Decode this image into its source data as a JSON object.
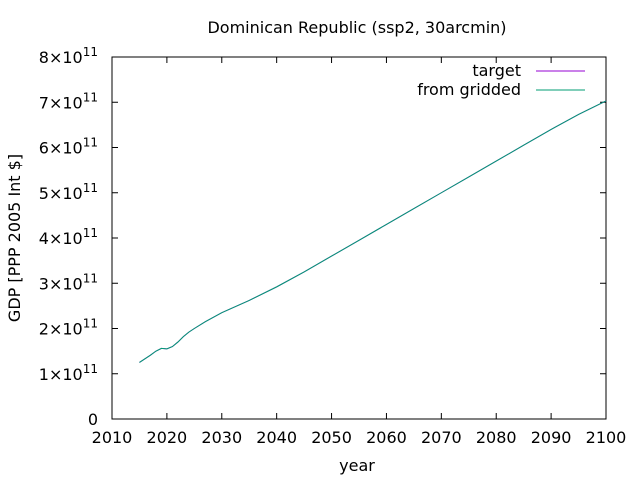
{
  "chart_data": {
    "type": "line",
    "title": "Dominican Republic (ssp2, 30arcmin)",
    "xlabel": "year",
    "ylabel": "GDP [PPP 2005 Int $]",
    "xlim": [
      2010,
      2100
    ],
    "ylim": [
      0,
      800000000000
    ],
    "x_ticks": [
      2010,
      2020,
      2030,
      2040,
      2050,
      2060,
      2070,
      2080,
      2090,
      2100
    ],
    "x_tick_labels": [
      "2010",
      "2020",
      "2030",
      "2040",
      "2050",
      "2060",
      "2070",
      "2080",
      "2090",
      "2100"
    ],
    "y_ticks": [
      0,
      100000000000,
      200000000000,
      300000000000,
      400000000000,
      500000000000,
      600000000000,
      700000000000,
      800000000000
    ],
    "y_tick_labels": [
      {
        "mantissa": "0",
        "exponent": ""
      },
      {
        "mantissa": "1×10",
        "exponent": "11"
      },
      {
        "mantissa": "2×10",
        "exponent": "11"
      },
      {
        "mantissa": "3×10",
        "exponent": "11"
      },
      {
        "mantissa": "4×10",
        "exponent": "11"
      },
      {
        "mantissa": "5×10",
        "exponent": "11"
      },
      {
        "mantissa": "6×10",
        "exponent": "11"
      },
      {
        "mantissa": "7×10",
        "exponent": "11"
      },
      {
        "mantissa": "8×10",
        "exponent": "11"
      }
    ],
    "grid": false,
    "legend_position": "top-right",
    "series": [
      {
        "name": "target",
        "color": "#9400d3",
        "x": [
          2015,
          2016,
          2017,
          2018,
          2019,
          2020,
          2021,
          2022,
          2023,
          2024,
          2025,
          2027,
          2030,
          2035,
          2040,
          2045,
          2050,
          2055,
          2060,
          2065,
          2070,
          2075,
          2080,
          2085,
          2090,
          2095,
          2100
        ],
        "y": [
          125000000000,
          133000000000,
          141000000000,
          150000000000,
          156000000000,
          155000000000,
          160000000000,
          170000000000,
          182000000000,
          192000000000,
          200000000000,
          215000000000,
          235000000000,
          262000000000,
          292000000000,
          325000000000,
          360000000000,
          395000000000,
          430000000000,
          465000000000,
          500000000000,
          535000000000,
          570000000000,
          605000000000,
          640000000000,
          673000000000,
          703000000000
        ]
      },
      {
        "name": "from gridded",
        "color": "#009e73",
        "x": [
          2015,
          2016,
          2017,
          2018,
          2019,
          2020,
          2021,
          2022,
          2023,
          2024,
          2025,
          2027,
          2030,
          2035,
          2040,
          2045,
          2050,
          2055,
          2060,
          2065,
          2070,
          2075,
          2080,
          2085,
          2090,
          2095,
          2100
        ],
        "y": [
          125000000000,
          133000000000,
          141000000000,
          150000000000,
          156000000000,
          155000000000,
          160000000000,
          170000000000,
          182000000000,
          192000000000,
          200000000000,
          215000000000,
          235000000000,
          262000000000,
          292000000000,
          325000000000,
          360000000000,
          395000000000,
          430000000000,
          465000000000,
          500000000000,
          535000000000,
          570000000000,
          605000000000,
          640000000000,
          673000000000,
          703000000000
        ]
      }
    ]
  }
}
